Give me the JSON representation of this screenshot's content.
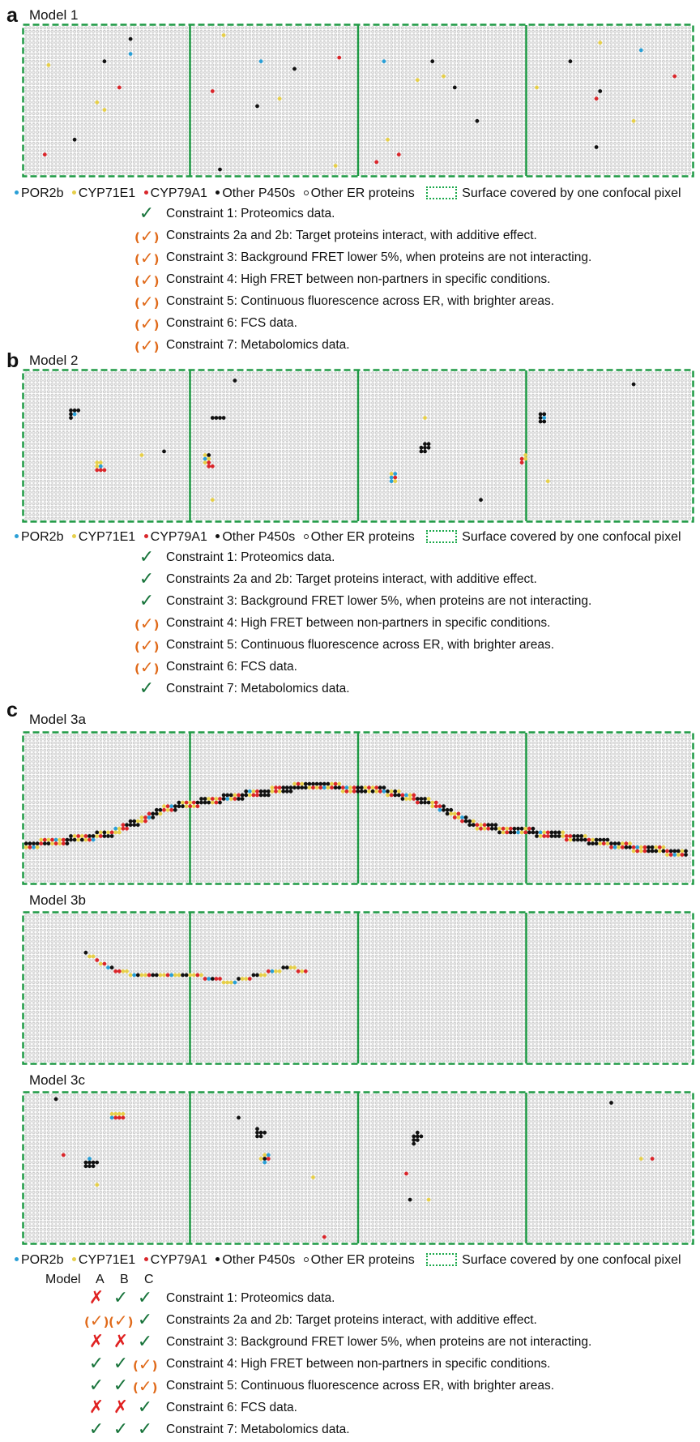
{
  "panels": {
    "a": {
      "letter": "a",
      "model": "Model 1"
    },
    "b": {
      "letter": "b",
      "model": "Model 2"
    },
    "c": {
      "letter": "c",
      "model3a": "Model 3a",
      "model3b": "Model 3b",
      "model3c": "Model 3c"
    }
  },
  "legend": {
    "por2b": "POR2b",
    "cyp71e1": "CYP71E1",
    "cyp79a1": "CYP79A1",
    "other_p450s": "Other P450s",
    "other_er": "Other ER proteins",
    "surface": "Surface covered by one confocal pixel"
  },
  "colors": {
    "por2b": "#2a9fd6",
    "cyp71e1": "#e6cf4a",
    "cyp79a1": "#d9262b",
    "other_p450s": "#111111",
    "frame": "#1f9a45",
    "grid": "#b9b9b9",
    "check": "#17733a",
    "partial": "#e06a1a",
    "cross": "#e02222"
  },
  "constraints": [
    "Constraint 1: Proteomics data.",
    "Constraints 2a and 2b: Target proteins interact, with additive effect.",
    "Constraint 3: Background FRET lower 5%, when proteins are not interacting.",
    "Constraint 4: High FRET between non-partners in specific conditions.",
    "Constraint 5: Continuous fluorescence across ER, with brighter areas.",
    "Constraint 6: FCS data.",
    "Constraint 7: Metabolomics data."
  ],
  "marks_model1": [
    "check",
    "partial",
    "partial",
    "partial",
    "partial",
    "partial",
    "partial"
  ],
  "marks_model2": [
    "check",
    "check",
    "check",
    "partial",
    "partial",
    "partial",
    "check"
  ],
  "table_c": {
    "row_label": "Model",
    "cols": [
      "A",
      "B",
      "C"
    ],
    "marks": [
      [
        "cross",
        "check",
        "check"
      ],
      [
        "partial",
        "partial",
        "check"
      ],
      [
        "cross",
        "cross",
        "check"
      ],
      [
        "check",
        "check",
        "partial"
      ],
      [
        "check",
        "check",
        "partial"
      ],
      [
        "cross",
        "cross",
        "check"
      ],
      [
        "check",
        "check",
        "check"
      ]
    ]
  }
}
